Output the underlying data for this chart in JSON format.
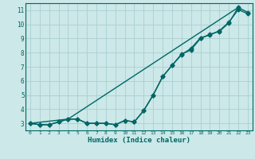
{
  "xlabel": "Humidex (Indice chaleur)",
  "background_color": "#cce8e8",
  "grid_color": "#aad0d0",
  "line_color": "#006666",
  "xlim": [
    -0.5,
    23.5
  ],
  "ylim": [
    2.5,
    11.5
  ],
  "xticks": [
    0,
    1,
    2,
    3,
    4,
    5,
    6,
    7,
    8,
    9,
    10,
    11,
    12,
    13,
    14,
    15,
    16,
    17,
    18,
    19,
    20,
    21,
    22,
    23
  ],
  "yticks": [
    3,
    4,
    5,
    6,
    7,
    8,
    9,
    10,
    11
  ],
  "line1_x": [
    0,
    1,
    2,
    3,
    4,
    5,
    6,
    7,
    8,
    9,
    10,
    11,
    12,
    13,
    14,
    15,
    16,
    17,
    18,
    19,
    20,
    21,
    22,
    23
  ],
  "line1_y": [
    3.0,
    2.9,
    2.9,
    3.1,
    3.3,
    3.3,
    3.0,
    3.0,
    3.0,
    2.9,
    3.2,
    3.1,
    3.9,
    5.0,
    6.3,
    7.1,
    7.9,
    8.2,
    9.0,
    9.3,
    9.5,
    10.1,
    11.2,
    10.85
  ],
  "line2_x": [
    0,
    1,
    2,
    3,
    4,
    5,
    6,
    7,
    8,
    9,
    10,
    11,
    12,
    13,
    14,
    15,
    16,
    17,
    18,
    19,
    20,
    21,
    22,
    23
  ],
  "line2_y": [
    3.0,
    2.9,
    2.9,
    3.1,
    3.3,
    3.3,
    3.0,
    3.0,
    3.0,
    2.9,
    3.2,
    3.1,
    3.9,
    5.0,
    6.3,
    7.1,
    7.85,
    8.3,
    9.05,
    9.25,
    9.55,
    10.15,
    11.05,
    10.75
  ],
  "line3_x": [
    0,
    4,
    22
  ],
  "line3_y": [
    3.0,
    3.3,
    11.2
  ],
  "marker_size": 2.5,
  "line_width": 1.0
}
